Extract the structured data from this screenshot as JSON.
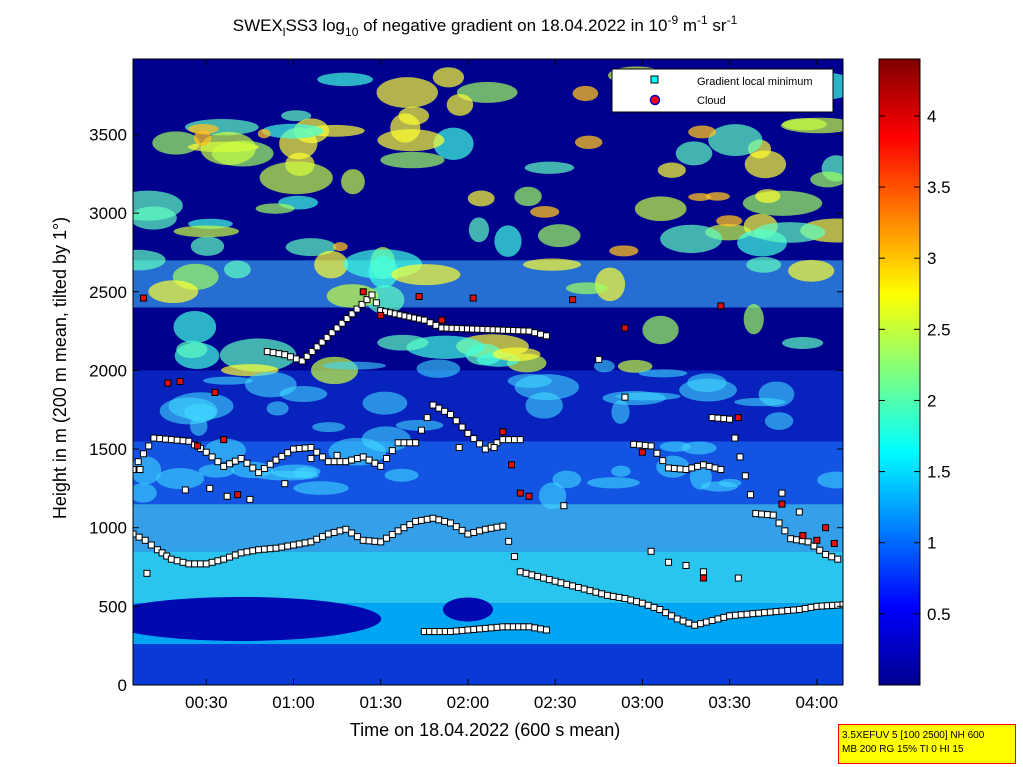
{
  "chart_data": {
    "type": "heatmap",
    "title": {
      "prefix": "SWEX",
      "prefix_sub": "l",
      "part1": "SS3 log",
      "part1_sub": "10",
      "part2": " of negative gradient on 18.04.2022 in 10",
      "exp1": "-9",
      "part3": " m",
      "exp2": "-1",
      "part4": " sr",
      "exp3": "-1"
    },
    "xlabel": "Time on 18.04.2022 (600 s mean)",
    "ylabel": "Height in m (200 m mean, tilted by 1°)",
    "x_range_hours": [
      0.08,
      4.15
    ],
    "y_range_m": [
      0,
      3980
    ],
    "x_ticks": [
      {
        "h": 0.5,
        "label": "00:30"
      },
      {
        "h": 1.0,
        "label": "01:00"
      },
      {
        "h": 1.5,
        "label": "01:30"
      },
      {
        "h": 2.0,
        "label": "02:00"
      },
      {
        "h": 2.5,
        "label": "02:30"
      },
      {
        "h": 3.0,
        "label": "03:00"
      },
      {
        "h": 3.5,
        "label": "03:30"
      },
      {
        "h": 4.0,
        "label": "04:00"
      }
    ],
    "y_ticks": [
      {
        "v": 0,
        "label": "0"
      },
      {
        "v": 500,
        "label": "500"
      },
      {
        "v": 1000,
        "label": "1000"
      },
      {
        "v": 1500,
        "label": "1500"
      },
      {
        "v": 2000,
        "label": "2000"
      },
      {
        "v": 2500,
        "label": "2500"
      },
      {
        "v": 3000,
        "label": "3000"
      },
      {
        "v": 3500,
        "label": "3500"
      }
    ],
    "colorbar": {
      "range": [
        0,
        4.4
      ],
      "ticks": [
        {
          "v": 0.5,
          "label": "0.5"
        },
        {
          "v": 1,
          "label": "1"
        },
        {
          "v": 1.5,
          "label": "1.5"
        },
        {
          "v": 2,
          "label": "2"
        },
        {
          "v": 2.5,
          "label": "2.5"
        },
        {
          "v": 3,
          "label": "3"
        },
        {
          "v": 3.5,
          "label": "3.5"
        },
        {
          "v": 4,
          "label": "4"
        }
      ],
      "colormap": "jet"
    },
    "legend": {
      "position": "top-right",
      "entries": [
        {
          "label": "Gradient local minimum",
          "marker": "square",
          "color": "#00ffff"
        },
        {
          "label": "Cloud",
          "marker": "circle",
          "color": "#ff0000"
        }
      ]
    },
    "gradient_minimum_layers": [
      {
        "name": "boundary-layer-top",
        "points": [
          [
            0.08,
            960
          ],
          [
            0.15,
            920
          ],
          [
            0.22,
            860
          ],
          [
            0.3,
            800
          ],
          [
            0.4,
            770
          ],
          [
            0.5,
            770
          ],
          [
            0.6,
            800
          ],
          [
            0.7,
            840
          ],
          [
            0.8,
            860
          ],
          [
            0.9,
            870
          ],
          [
            1.0,
            890
          ],
          [
            1.1,
            910
          ],
          [
            1.2,
            960
          ],
          [
            1.3,
            990
          ],
          [
            1.4,
            920
          ],
          [
            1.5,
            910
          ],
          [
            1.6,
            980
          ],
          [
            1.7,
            1040
          ],
          [
            1.8,
            1060
          ],
          [
            1.9,
            1030
          ],
          [
            2.0,
            960
          ],
          [
            2.1,
            990
          ],
          [
            2.2,
            1010
          ],
          [
            2.3,
            720
          ],
          [
            2.4,
            690
          ],
          [
            2.5,
            660
          ],
          [
            2.6,
            630
          ],
          [
            2.7,
            600
          ],
          [
            2.8,
            570
          ],
          [
            2.9,
            550
          ],
          [
            3.0,
            520
          ],
          [
            3.1,
            480
          ],
          [
            3.2,
            420
          ],
          [
            3.3,
            380
          ],
          [
            3.4,
            410
          ],
          [
            3.5,
            440
          ],
          [
            3.6,
            450
          ],
          [
            3.7,
            460
          ],
          [
            3.8,
            470
          ],
          [
            3.9,
            480
          ],
          [
            4.0,
            500
          ],
          [
            4.15,
            510
          ]
        ]
      },
      {
        "name": "lower-layer",
        "points": [
          [
            1.75,
            340
          ],
          [
            1.9,
            340
          ],
          [
            2.0,
            350
          ],
          [
            2.1,
            360
          ],
          [
            2.2,
            370
          ],
          [
            2.35,
            370
          ],
          [
            2.45,
            350
          ]
        ]
      },
      {
        "name": "residual-layer",
        "points": [
          [
            0.08,
            1370
          ],
          [
            0.2,
            1570
          ],
          [
            0.3,
            1560
          ],
          [
            0.4,
            1550
          ],
          [
            0.5,
            1480
          ],
          [
            0.6,
            1390
          ],
          [
            0.7,
            1440
          ],
          [
            0.8,
            1350
          ],
          [
            0.9,
            1430
          ],
          [
            1.0,
            1500
          ],
          [
            1.1,
            1510
          ],
          [
            1.2,
            1420
          ],
          [
            1.3,
            1420
          ],
          [
            1.4,
            1450
          ],
          [
            1.5,
            1390
          ],
          [
            1.6,
            1540
          ],
          [
            1.7,
            1540
          ],
          [
            1.8,
            1780
          ],
          [
            1.9,
            1720
          ],
          [
            2.0,
            1600
          ],
          [
            2.1,
            1500
          ],
          [
            2.2,
            1560
          ],
          [
            2.3,
            1560
          ]
        ]
      },
      {
        "name": "afternoon-layer",
        "points": [
          [
            2.95,
            1530
          ],
          [
            3.05,
            1520
          ],
          [
            3.15,
            1380
          ],
          [
            3.25,
            1370
          ],
          [
            3.35,
            1400
          ],
          [
            3.45,
            1370
          ]
        ]
      },
      {
        "name": "upper-layer",
        "points": [
          [
            0.85,
            2120
          ],
          [
            0.95,
            2100
          ],
          [
            1.05,
            2060
          ],
          [
            1.45,
            2480
          ],
          [
            1.5,
            2380
          ],
          [
            1.75,
            2320
          ],
          [
            1.85,
            2270
          ],
          [
            2.35,
            2250
          ],
          [
            2.45,
            2220
          ]
        ]
      },
      {
        "name": "east-layer",
        "points": [
          [
            3.4,
            1700
          ],
          [
            3.5,
            1690
          ],
          [
            3.65,
            1090
          ],
          [
            3.75,
            1080
          ],
          [
            3.85,
            930
          ],
          [
            3.95,
            910
          ],
          [
            4.05,
            830
          ],
          [
            4.12,
            800
          ]
        ]
      }
    ],
    "cloud_points": [
      [
        0.14,
        2460
      ],
      [
        0.28,
        1920
      ],
      [
        0.35,
        1930
      ],
      [
        0.45,
        1520
      ],
      [
        0.55,
        1860
      ],
      [
        0.6,
        1560
      ],
      [
        0.68,
        1210
      ],
      [
        1.4,
        2500
      ],
      [
        1.5,
        2350
      ],
      [
        1.72,
        2470
      ],
      [
        1.85,
        2320
      ],
      [
        2.03,
        2460
      ],
      [
        2.2,
        1610
      ],
      [
        2.25,
        1400
      ],
      [
        2.3,
        1220
      ],
      [
        2.35,
        1200
      ],
      [
        2.6,
        2450
      ],
      [
        2.9,
        2270
      ],
      [
        3.0,
        1480
      ],
      [
        3.45,
        2410
      ],
      [
        3.55,
        1700
      ],
      [
        3.35,
        680
      ],
      [
        3.8,
        1150
      ],
      [
        3.92,
        950
      ],
      [
        4.0,
        920
      ],
      [
        4.05,
        1000
      ],
      [
        4.1,
        900
      ]
    ],
    "isolated_minima": [
      [
        0.16,
        710
      ],
      [
        0.12,
        1370
      ],
      [
        0.38,
        1240
      ],
      [
        0.52,
        1250
      ],
      [
        0.62,
        1200
      ],
      [
        0.75,
        1180
      ],
      [
        0.95,
        1280
      ],
      [
        1.1,
        1440
      ],
      [
        1.25,
        1460
      ],
      [
        1.95,
        1510
      ],
      [
        2.15,
        1510
      ],
      [
        2.55,
        1140
      ],
      [
        2.75,
        2070
      ],
      [
        2.9,
        1830
      ],
      [
        3.05,
        850
      ],
      [
        3.15,
        780
      ],
      [
        3.25,
        760
      ],
      [
        3.35,
        720
      ],
      [
        3.55,
        680
      ],
      [
        3.8,
        1220
      ],
      [
        3.9,
        1100
      ]
    ]
  },
  "info_box": {
    "line1": "3.5XEFUV 5 [100 2500] NH 600",
    "line2": "MB 200 RG 15% TI 0 HI 15"
  }
}
